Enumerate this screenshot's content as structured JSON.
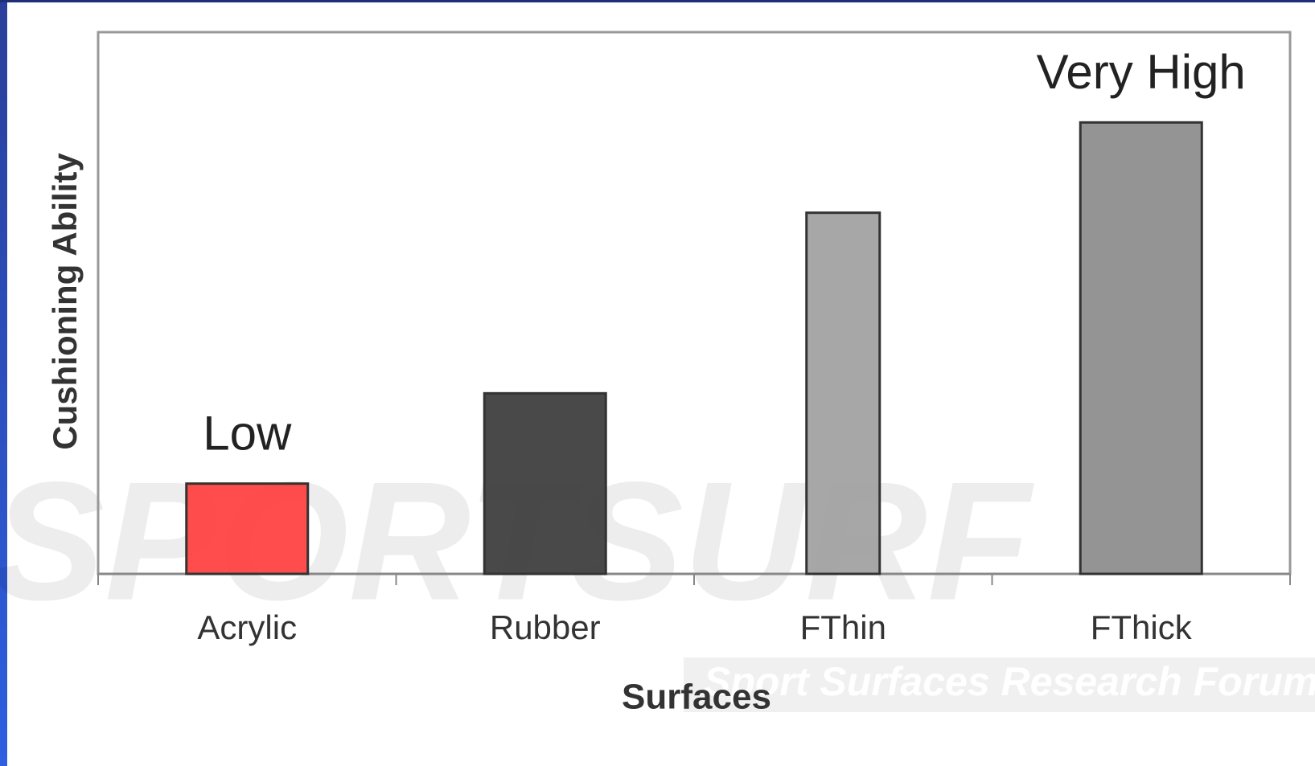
{
  "chart_data": {
    "type": "bar",
    "y_label": "Cushioning Ability",
    "x_label": "Surfaces",
    "categories": [
      "Acrylic",
      "Rubber",
      "FThin",
      "FThick"
    ],
    "values": [
      1,
      2,
      4,
      5
    ],
    "colors": [
      "#ff4242",
      "#3f3f3f",
      "#a2a2a2",
      "#8e8e8e"
    ],
    "ylim": [
      0,
      6
    ],
    "annotations": [
      {
        "text": "Low",
        "x": "Acrylic"
      },
      {
        "text": "Very High",
        "x": "FThick"
      }
    ],
    "watermark": {
      "brand": "SPORTSURF",
      "tagline": "Sport Surfaces Research Forum"
    }
  }
}
